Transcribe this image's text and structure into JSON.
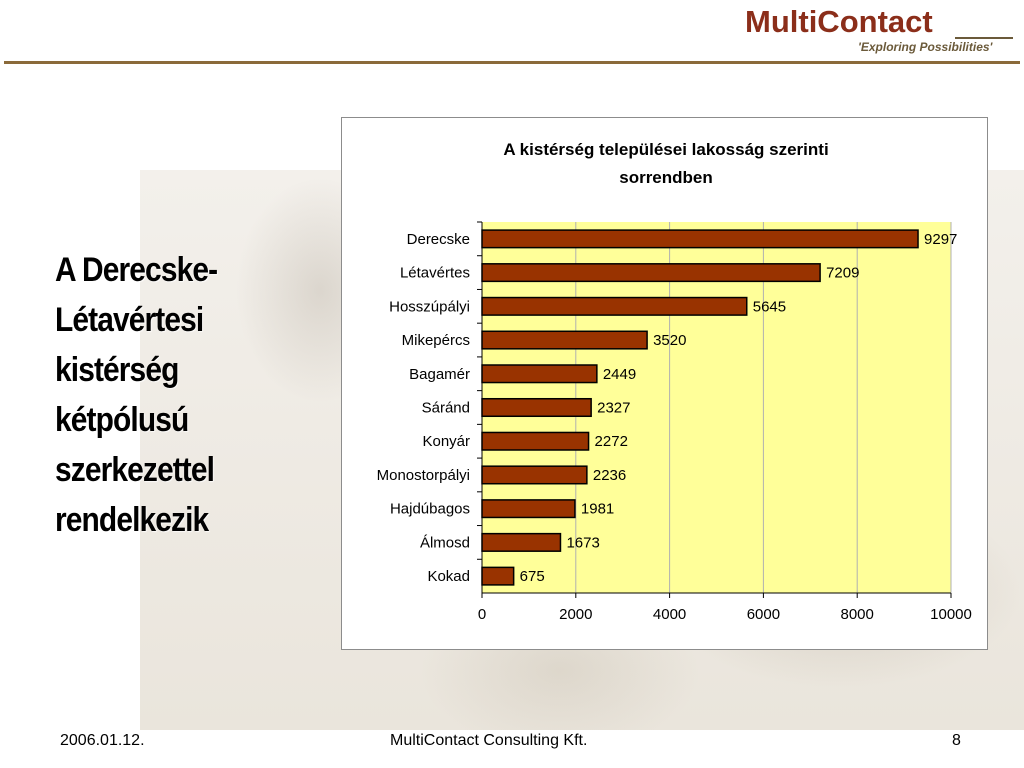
{
  "logo": {
    "name": "MultiContact",
    "tagline": "'Exploring Possibilities'"
  },
  "slide": {
    "title_lines": [
      "A Derecske-",
      "Létavértesi",
      "kistérség",
      "kétpólusú",
      "szerkezettel",
      "rendelkezik"
    ]
  },
  "footer": {
    "date": "2006.01.12.",
    "company": "MultiContact Consulting Kft.",
    "page": "8"
  },
  "colors": {
    "bar_fill": "#993300",
    "plot_bg": "#ffff99",
    "brand": "#8b2e1a"
  },
  "chart_data": {
    "type": "bar",
    "orientation": "horizontal",
    "title_lines": [
      "A kistérség települései lakosság szerinti",
      "sorrendben"
    ],
    "categories": [
      "Derecske",
      "Létavértes",
      "Hosszúpályi",
      "Mikepércs",
      "Bagamér",
      "Sáránd",
      "Konyár",
      "Monostorpályi",
      "Hajdúbagos",
      "Álmosd",
      "Kokad"
    ],
    "values": [
      9297,
      7209,
      5645,
      3520,
      2449,
      2327,
      2272,
      2236,
      1981,
      1673,
      675
    ],
    "xlim": [
      0,
      10000
    ],
    "xticks": [
      0,
      2000,
      4000,
      6000,
      8000,
      10000
    ],
    "grid": true,
    "legend": "none"
  }
}
